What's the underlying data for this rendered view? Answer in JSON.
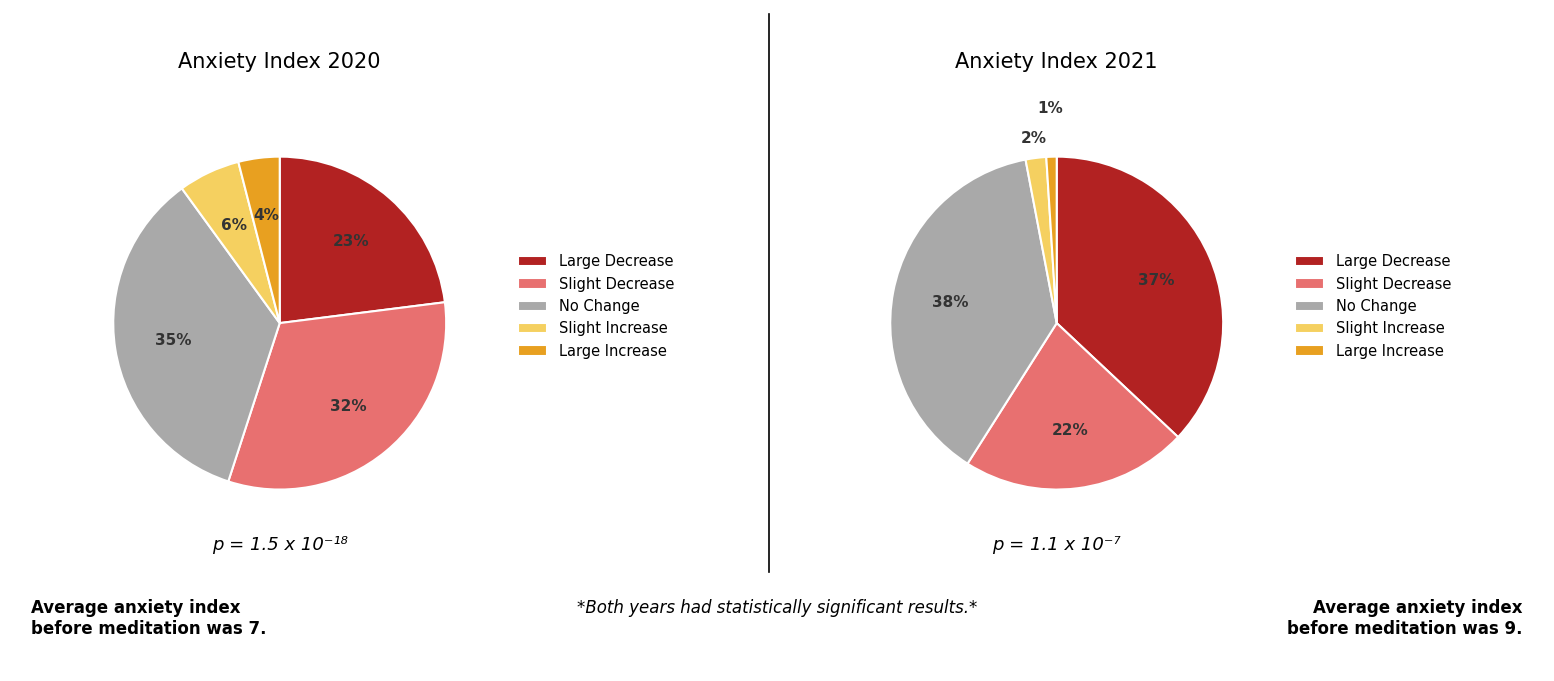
{
  "chart_data": [
    {
      "type": "pie",
      "title": "Anxiety Index 2020",
      "categories": [
        "Large Decrease",
        "Slight Decrease",
        "No Change",
        "Slight Increase",
        "Large Increase"
      ],
      "values": [
        23,
        32,
        35,
        6,
        4
      ],
      "value_labels": [
        "23%",
        "32%",
        "35%",
        "6%",
        "4%"
      ],
      "colors": [
        "#B22222",
        "#E87070",
        "#A9A9A9",
        "#F5D060",
        "#E8A020"
      ],
      "data_labels": true,
      "legend": "center left",
      "annotations": [
        "p = 1.5 x 10⁻¹⁸"
      ],
      "note": "Average anxiety index\nbefore meditation was 7."
    },
    {
      "type": "pie",
      "title": "Anxiety Index 2021",
      "categories": [
        "Large Decrease",
        "Slight Decrease",
        "No Change",
        "Slight Increase",
        "Large Increase"
      ],
      "values": [
        37,
        22,
        38,
        2,
        1
      ],
      "value_labels": [
        "37%",
        "22%",
        "38%",
        "2%",
        "1%"
      ],
      "colors": [
        "#B22222",
        "#E87070",
        "#A9A9A9",
        "#F5D060",
        "#E8A020"
      ],
      "data_labels": true,
      "legend": "center left",
      "annotations": [
        "p = 1.1 x 10⁻⁷"
      ],
      "note": "Average anxiety index\nbefore meditation was 9."
    }
  ],
  "note": "*Both years had statistically significant results.*"
}
